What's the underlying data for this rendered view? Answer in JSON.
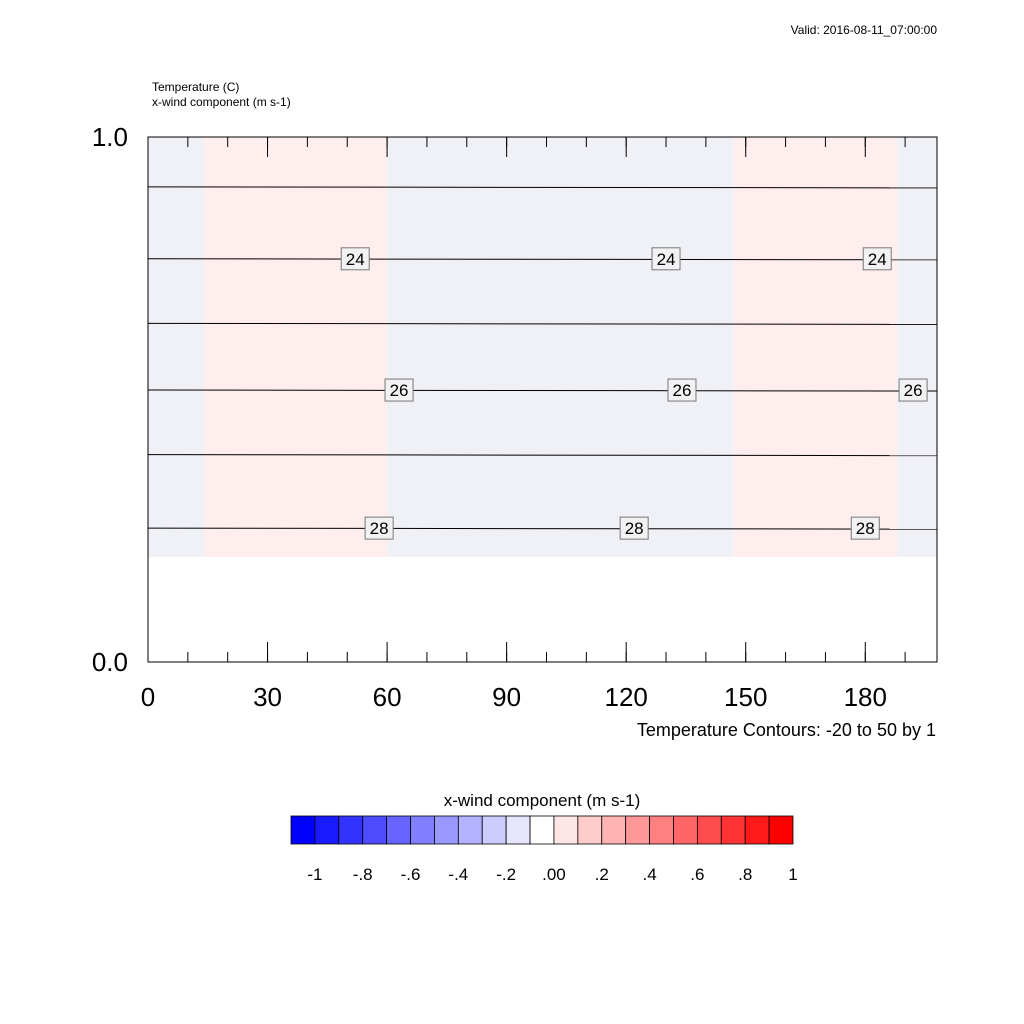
{
  "header": {
    "valid_time": "Valid: 2016-08-11_07:00:00",
    "field_1": "Temperature   (C)",
    "field_2": "x-wind component   (m s-1)"
  },
  "footer": {
    "contour_info": "Temperature Contours: -20 to 50 by 1"
  },
  "chart_data": {
    "type": "contour",
    "x_ticks": [
      0,
      30,
      60,
      90,
      120,
      150,
      180
    ],
    "x_tick_labels": [
      "0",
      "30",
      "60",
      "90",
      "120",
      "150",
      "180"
    ],
    "y_ticks": [
      0.0,
      1.0
    ],
    "y_tick_labels": [
      "0.0",
      "1.0"
    ],
    "xlim": [
      0,
      198
    ],
    "ylim": [
      0.0,
      1.0
    ],
    "data_ymin": 0.2,
    "fill_bands": [
      {
        "x": [
          0,
          14
        ],
        "value": "0.00"
      },
      {
        "x": [
          14,
          60
        ],
        "value": ".00"
      },
      {
        "x": [
          60,
          147
        ],
        "value": "-.00"
      },
      {
        "x": [
          147,
          188
        ],
        "value": ".00"
      },
      {
        "x": [
          188,
          198
        ],
        "value": "-.00"
      }
    ],
    "contours": [
      {
        "value": 23,
        "y": 0.905,
        "label": ""
      },
      {
        "value": 24,
        "y": 0.768,
        "label": "24",
        "label_x": [
          52,
          130,
          183
        ]
      },
      {
        "value": 25,
        "y": 0.645,
        "label": ""
      },
      {
        "value": 26,
        "y": 0.518,
        "label": "26",
        "label_x": [
          63,
          134,
          192
        ]
      },
      {
        "value": 27,
        "y": 0.395,
        "label": ""
      },
      {
        "value": 28,
        "y": 0.255,
        "label": "28",
        "label_x": [
          58,
          122,
          180
        ]
      }
    ],
    "colorbar": {
      "title": "x-wind component  (m s-1)",
      "colors": [
        "#0000ff",
        "#1a1aff",
        "#3333ff",
        "#4d4dff",
        "#6666ff",
        "#8080ff",
        "#9999ff",
        "#b3b3ff",
        "#ccccff",
        "#e6e6ff",
        "#ffffff",
        "#ffe6e6",
        "#ffcccc",
        "#ffb3b3",
        "#ff9999",
        "#ff8080",
        "#ff6666",
        "#ff4d4d",
        "#ff3333",
        "#ff1a1a",
        "#ff0000"
      ],
      "tick_labels": [
        "-1",
        "-.8",
        "-.6",
        "-.4",
        "-.2",
        ".00",
        ".2",
        ".4",
        ".6",
        ".8",
        "1"
      ]
    },
    "colors": {
      "fill_positive": "#ffeeee",
      "fill_negative": "#f0f1f7",
      "contour_line": "#000000"
    }
  }
}
